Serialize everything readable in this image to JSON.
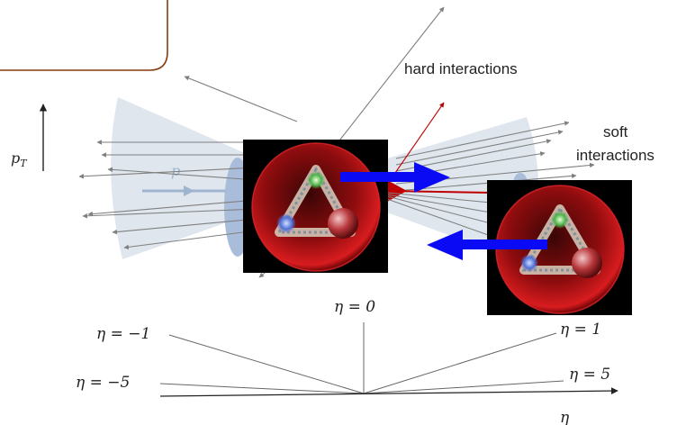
{
  "labels": {
    "hard_interactions": "hard interactions",
    "soft_line1": "soft",
    "soft_line2": "interactions",
    "pt_symbol": "p",
    "pt_subscript": "T",
    "proton_symbol": "p",
    "eta_axis": "η",
    "eta_zero": "η = 0",
    "eta_neg1": "η = −1",
    "eta_pos1": "η = 1",
    "eta_neg5": "η = −5",
    "eta_pos5": "η = 5"
  },
  "colors": {
    "beam_fan": "#dfe6ee",
    "beam_arrow": "#9fb4cf",
    "disc": "#a9bddb",
    "track_gray": "#7f7f7f",
    "track_red": "#c00000",
    "frame_border": "#843c0c",
    "collision_arrow": "#0a0af5",
    "sphere_red": "#b41214"
  },
  "icons": {
    "proton_left": "proton-sphere-icon",
    "proton_right": "proton-sphere-icon"
  }
}
